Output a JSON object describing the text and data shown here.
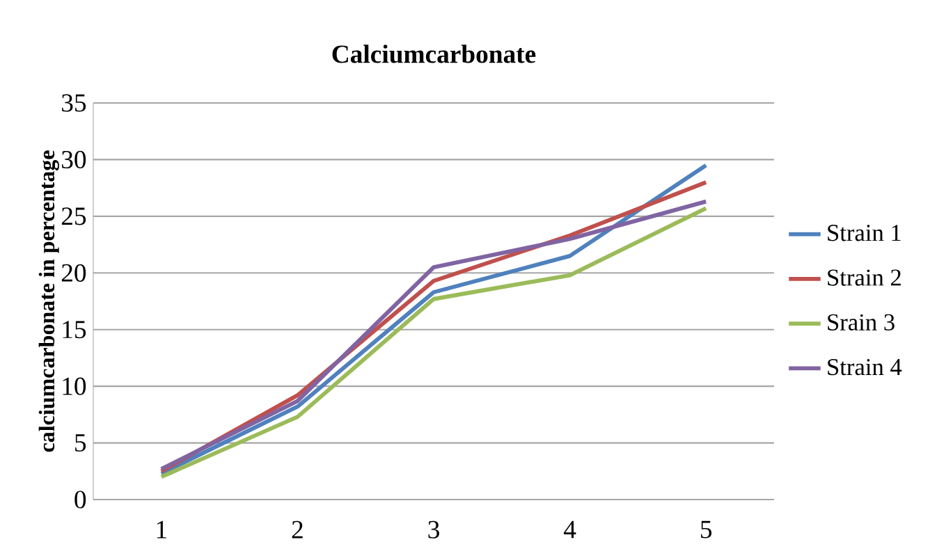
{
  "chart_data": {
    "type": "line",
    "title": "Calciumcarbonate",
    "ylabel": "calciumcarbonate in percentage",
    "categories": [
      "1",
      "2",
      "3",
      "4",
      "5"
    ],
    "series": [
      {
        "name": "Strain 1",
        "color": "#4f81bd",
        "values": [
          2.3,
          8.2,
          18.3,
          21.5,
          29.5
        ]
      },
      {
        "name": "Strain 2",
        "color": "#c0504d",
        "values": [
          2.5,
          9.2,
          19.3,
          23.3,
          28
        ]
      },
      {
        "name": "Srain 3",
        "color": "#9bbb59",
        "values": [
          2.0,
          7.3,
          17.7,
          19.8,
          25.7
        ]
      },
      {
        "name": "Strain 4",
        "color": "#8064a2",
        "values": [
          2.7,
          8.7,
          20.5,
          23,
          26.3
        ]
      }
    ],
    "ylim": [
      0,
      35
    ],
    "yticks": [
      0,
      5,
      10,
      15,
      20,
      25,
      30,
      35
    ],
    "grid": "y",
    "legend": "right",
    "marker": "none",
    "line_style": "solid"
  }
}
